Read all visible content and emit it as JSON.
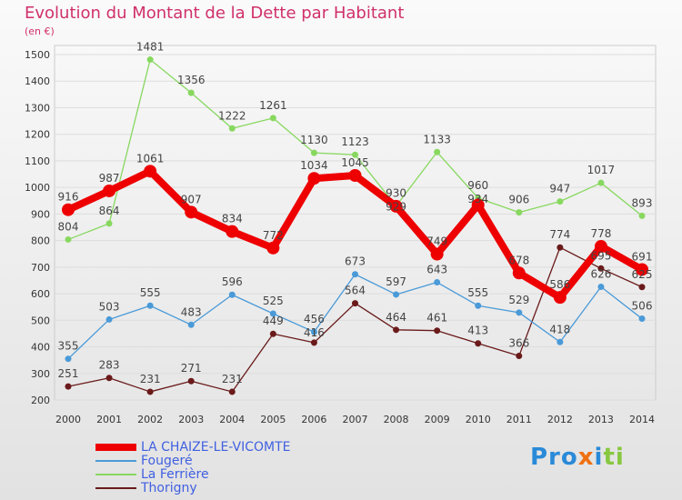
{
  "chart_data": {
    "type": "line",
    "title": "Evolution du Montant de la Dette par Habitant",
    "ylabel": "(en €)",
    "x": [
      "2000",
      "2001",
      "2002",
      "2003",
      "2004",
      "2005",
      "2006",
      "2007",
      "2008",
      "2009",
      "2010",
      "2011",
      "2012",
      "2013",
      "2014"
    ],
    "ylim": [
      200,
      1500
    ],
    "yticks": [
      200,
      300,
      400,
      500,
      600,
      700,
      800,
      900,
      1000,
      1100,
      1200,
      1300,
      1400,
      1500
    ],
    "grid": true,
    "legend_position": "bottom-left",
    "series": [
      {
        "name": "LA CHAIZE-LE-VICOMTE",
        "color": "#ee0000",
        "values": [
          916,
          987,
          1061,
          907,
          834,
          772,
          1034,
          1045,
          929,
          749,
          934,
          678,
          586,
          778,
          691
        ]
      },
      {
        "name": "Fougeré",
        "color": "#4a9ad8",
        "values": [
          355,
          503,
          555,
          483,
          596,
          525,
          456,
          673,
          597,
          643,
          555,
          529,
          418,
          626,
          506
        ]
      },
      {
        "name": "La Ferrière",
        "color": "#88d860",
        "values": [
          804,
          864,
          1481,
          1356,
          1222,
          1261,
          1130,
          1123,
          930,
          1133,
          960,
          906,
          947,
          1017,
          893
        ]
      },
      {
        "name": "Thorigny",
        "color": "#6a1a1a",
        "values": [
          251,
          283,
          231,
          271,
          231,
          449,
          416,
          564,
          464,
          461,
          413,
          366,
          774,
          695,
          625
        ]
      }
    ]
  },
  "logo": "Prox iti"
}
